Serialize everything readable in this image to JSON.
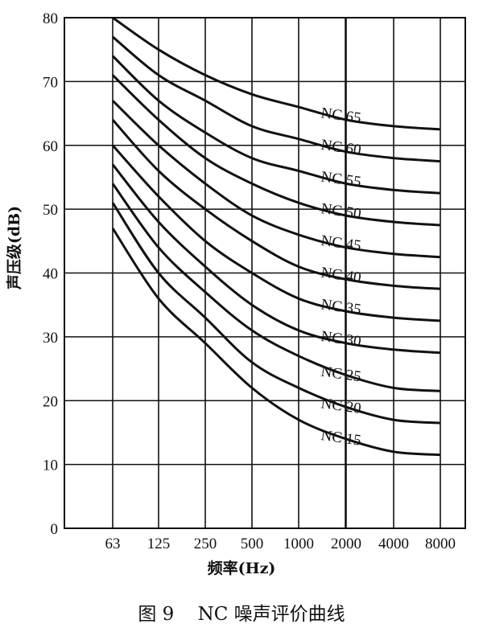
{
  "figure_caption": "图 9    NC 噪声评价曲线",
  "chart_data": {
    "type": "line",
    "xlabel": "频率(Hz)",
    "ylabel": "声压级(dB)",
    "categories": [
      "63",
      "125",
      "250",
      "500",
      "1000",
      "2000",
      "4000",
      "8000"
    ],
    "ylim": [
      0,
      80
    ],
    "yticks": [
      0,
      10,
      20,
      30,
      40,
      50,
      60,
      70,
      80
    ],
    "grid": true,
    "series": [
      {
        "name": "NC 65",
        "values": [
          80,
          75,
          71,
          68,
          66,
          64,
          63,
          62.5
        ]
      },
      {
        "name": "NC 60",
        "values": [
          77,
          71,
          67,
          63,
          61,
          59,
          58,
          57.5
        ]
      },
      {
        "name": "NC 55",
        "values": [
          74,
          67,
          62,
          58,
          56,
          54,
          53,
          52.5
        ]
      },
      {
        "name": "NC 50",
        "values": [
          71,
          64,
          58,
          54,
          51,
          49,
          48,
          47.5
        ]
      },
      {
        "name": "NC 45",
        "values": [
          67,
          60,
          54,
          49,
          46,
          44,
          43,
          42.5
        ]
      },
      {
        "name": "NC 40",
        "values": [
          64,
          56,
          50,
          45,
          41,
          39,
          38,
          37.5
        ]
      },
      {
        "name": "NC 35",
        "values": [
          60,
          52,
          45,
          40,
          36,
          34,
          33,
          32.5
        ]
      },
      {
        "name": "NC 30",
        "values": [
          57,
          48,
          41,
          35,
          31,
          29,
          28,
          27.5
        ]
      },
      {
        "name": "NC 25",
        "values": [
          54,
          44,
          37,
          31,
          27,
          24,
          22,
          21.5
        ]
      },
      {
        "name": "NC 20",
        "values": [
          51,
          40,
          33,
          26,
          22,
          19,
          17,
          16.5
        ]
      },
      {
        "name": "NC 15",
        "values": [
          47,
          36,
          29,
          22,
          17,
          14,
          12,
          11.5
        ]
      }
    ]
  }
}
